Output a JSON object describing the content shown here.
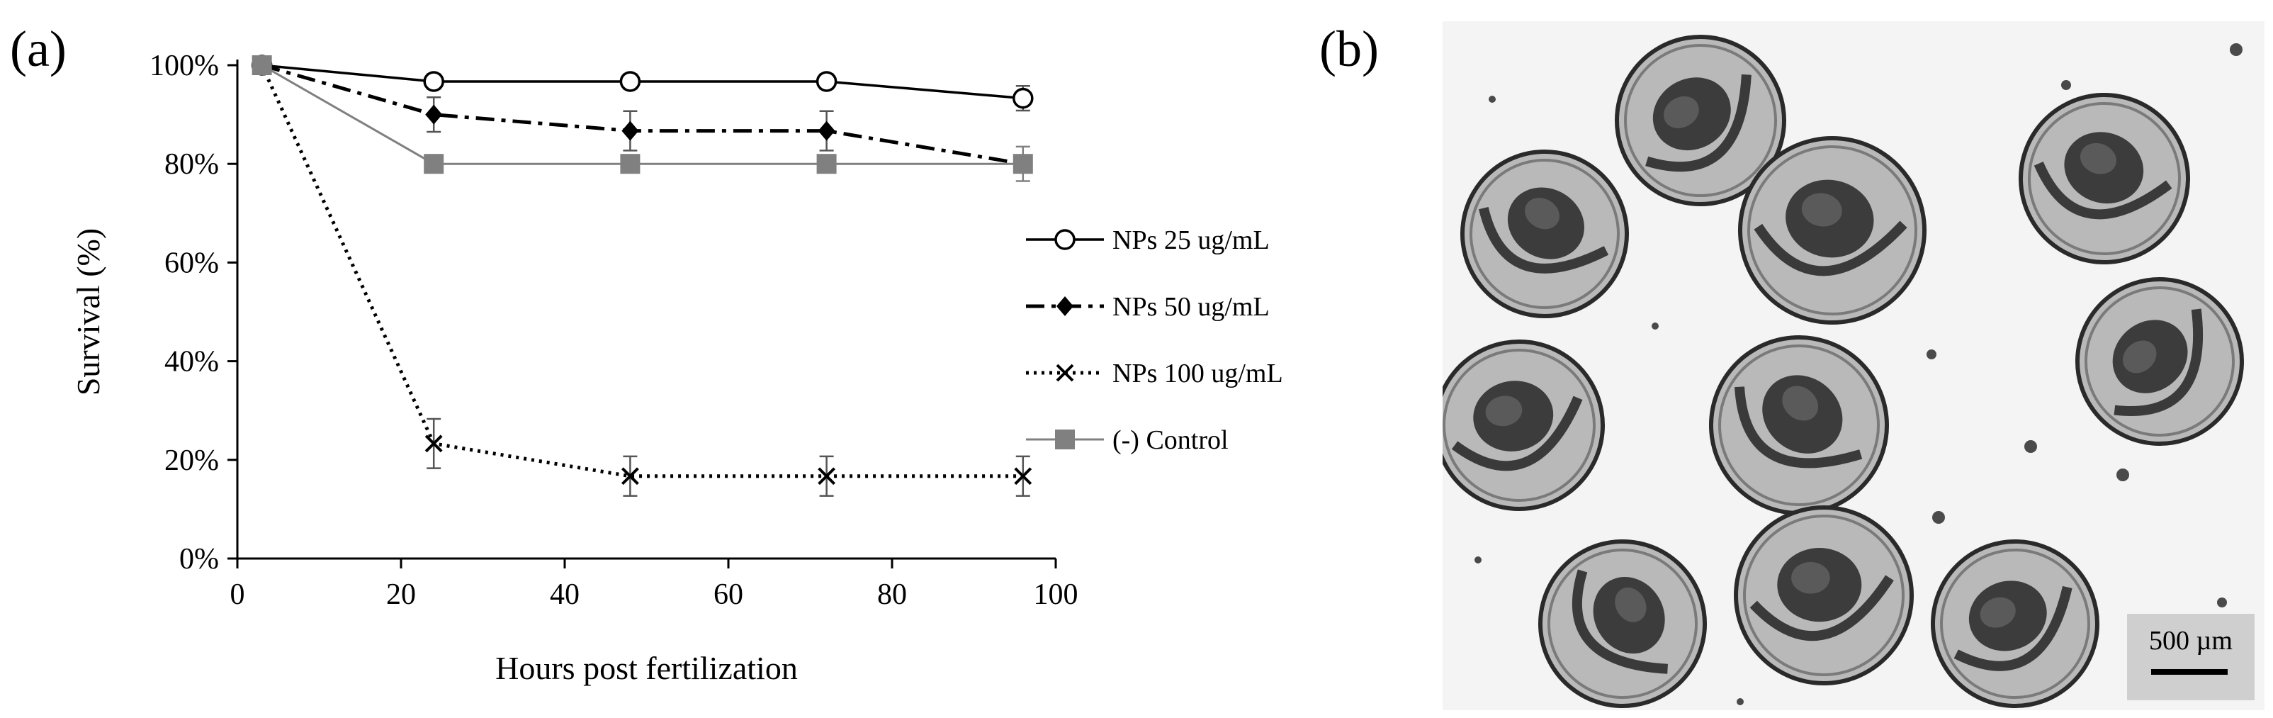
{
  "panel_a_label": "(a)",
  "panel_b_label": "(b)",
  "chart_data": {
    "type": "line",
    "title": "",
    "xlabel": "Hours post fertilization",
    "ylabel": "Survival (%)",
    "xlim": [
      0,
      100
    ],
    "ylim": [
      0,
      100
    ],
    "xticks": [
      0,
      20,
      40,
      60,
      80,
      100
    ],
    "yticks": [
      0,
      20,
      40,
      60,
      80,
      100
    ],
    "xtick_labels": [
      "0",
      "20",
      "40",
      "60",
      "80",
      "100"
    ],
    "ytick_labels": [
      "0%",
      "20%",
      "40%",
      "60%",
      "80%",
      "100%"
    ],
    "x": [
      3,
      24,
      48,
      72,
      96
    ],
    "legend_position": "right",
    "series": [
      {
        "name": "NPs 25 ug/mL",
        "marker": "open-circle",
        "line": "solid",
        "color": "#000000",
        "values": [
          100,
          96.7,
          96.7,
          96.7,
          93.3
        ],
        "errors": [
          0,
          1.5,
          1.5,
          1.5,
          2.5
        ]
      },
      {
        "name": "NPs 50 ug/mL",
        "marker": "diamond",
        "line": "dashdot",
        "color": "#000000",
        "values": [
          100,
          90,
          86.7,
          86.7,
          80
        ],
        "errors": [
          0,
          3.5,
          4,
          4,
          0
        ]
      },
      {
        "name": "NPs 100 ug/mL",
        "marker": "x",
        "line": "dotted",
        "color": "#000000",
        "values": [
          100,
          23.3,
          16.7,
          16.7,
          16.7
        ],
        "errors": [
          0,
          5,
          4,
          4,
          4
        ]
      },
      {
        "name": "(-) Control",
        "marker": "square",
        "line": "solid",
        "color": "#808080",
        "values": [
          100,
          80,
          80,
          80,
          80
        ],
        "errors": [
          0,
          0,
          0,
          0,
          3.5
        ]
      }
    ]
  },
  "micrograph": {
    "description_label": "zebrafish embryos",
    "scale_bar_label": "500 µm"
  }
}
